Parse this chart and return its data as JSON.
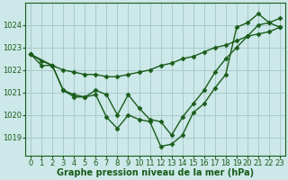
{
  "bg_color": "#cce8e8",
  "grid_color": "#aacaca",
  "line_color": "#1a5c1a",
  "marker": "D",
  "marker_size": 2.5,
  "line_width": 1.0,
  "xlabel": "Graphe pression niveau de la mer (hPa)",
  "xlabel_fontsize": 7.0,
  "tick_fontsize": 6.0,
  "ylim": [
    1018.2,
    1025.0
  ],
  "yticks": [
    1019,
    1020,
    1021,
    1022,
    1023,
    1024
  ],
  "xlim": [
    -0.5,
    23.5
  ],
  "xticks": [
    0,
    1,
    2,
    3,
    4,
    5,
    6,
    7,
    8,
    9,
    10,
    11,
    12,
    13,
    14,
    15,
    16,
    17,
    18,
    19,
    20,
    21,
    22,
    23
  ],
  "series1_x": [
    0,
    1,
    2,
    3,
    4,
    5,
    6,
    7,
    8,
    9,
    10,
    11,
    12,
    13,
    14,
    15,
    16,
    17,
    18,
    19,
    20,
    21,
    22,
    23
  ],
  "series1_y": [
    1022.7,
    1022.4,
    1022.2,
    1022.0,
    1021.9,
    1021.8,
    1021.8,
    1021.7,
    1021.7,
    1021.8,
    1021.9,
    1022.0,
    1022.2,
    1022.3,
    1022.5,
    1022.6,
    1022.8,
    1023.0,
    1023.1,
    1023.3,
    1023.5,
    1023.6,
    1023.7,
    1023.9
  ],
  "series2_x": [
    0,
    1,
    2,
    3,
    4,
    5,
    6,
    7,
    8,
    9,
    10,
    11,
    12,
    13,
    14,
    15,
    16,
    17,
    18,
    19,
    20,
    21,
    22,
    23
  ],
  "series2_y": [
    1022.7,
    1022.2,
    1022.2,
    1021.1,
    1020.8,
    1020.8,
    1020.9,
    1019.9,
    1019.4,
    1020.0,
    1019.8,
    1019.7,
    1018.6,
    1018.7,
    1019.1,
    1020.1,
    1020.5,
    1021.2,
    1021.8,
    1023.9,
    1024.1,
    1024.5,
    1024.1,
    1023.9
  ],
  "series3_x": [
    0,
    2,
    3,
    4,
    5,
    6,
    7,
    8,
    9,
    10,
    11,
    12,
    13,
    14,
    15,
    16,
    17,
    18,
    19,
    20,
    21,
    22,
    23
  ],
  "series3_y": [
    1022.7,
    1022.2,
    1021.1,
    1020.9,
    1020.8,
    1021.1,
    1020.9,
    1020.0,
    1020.9,
    1020.3,
    1019.8,
    1019.7,
    1019.1,
    1019.9,
    1020.5,
    1021.1,
    1021.9,
    1022.5,
    1023.0,
    1023.5,
    1024.0,
    1024.1,
    1024.3
  ]
}
